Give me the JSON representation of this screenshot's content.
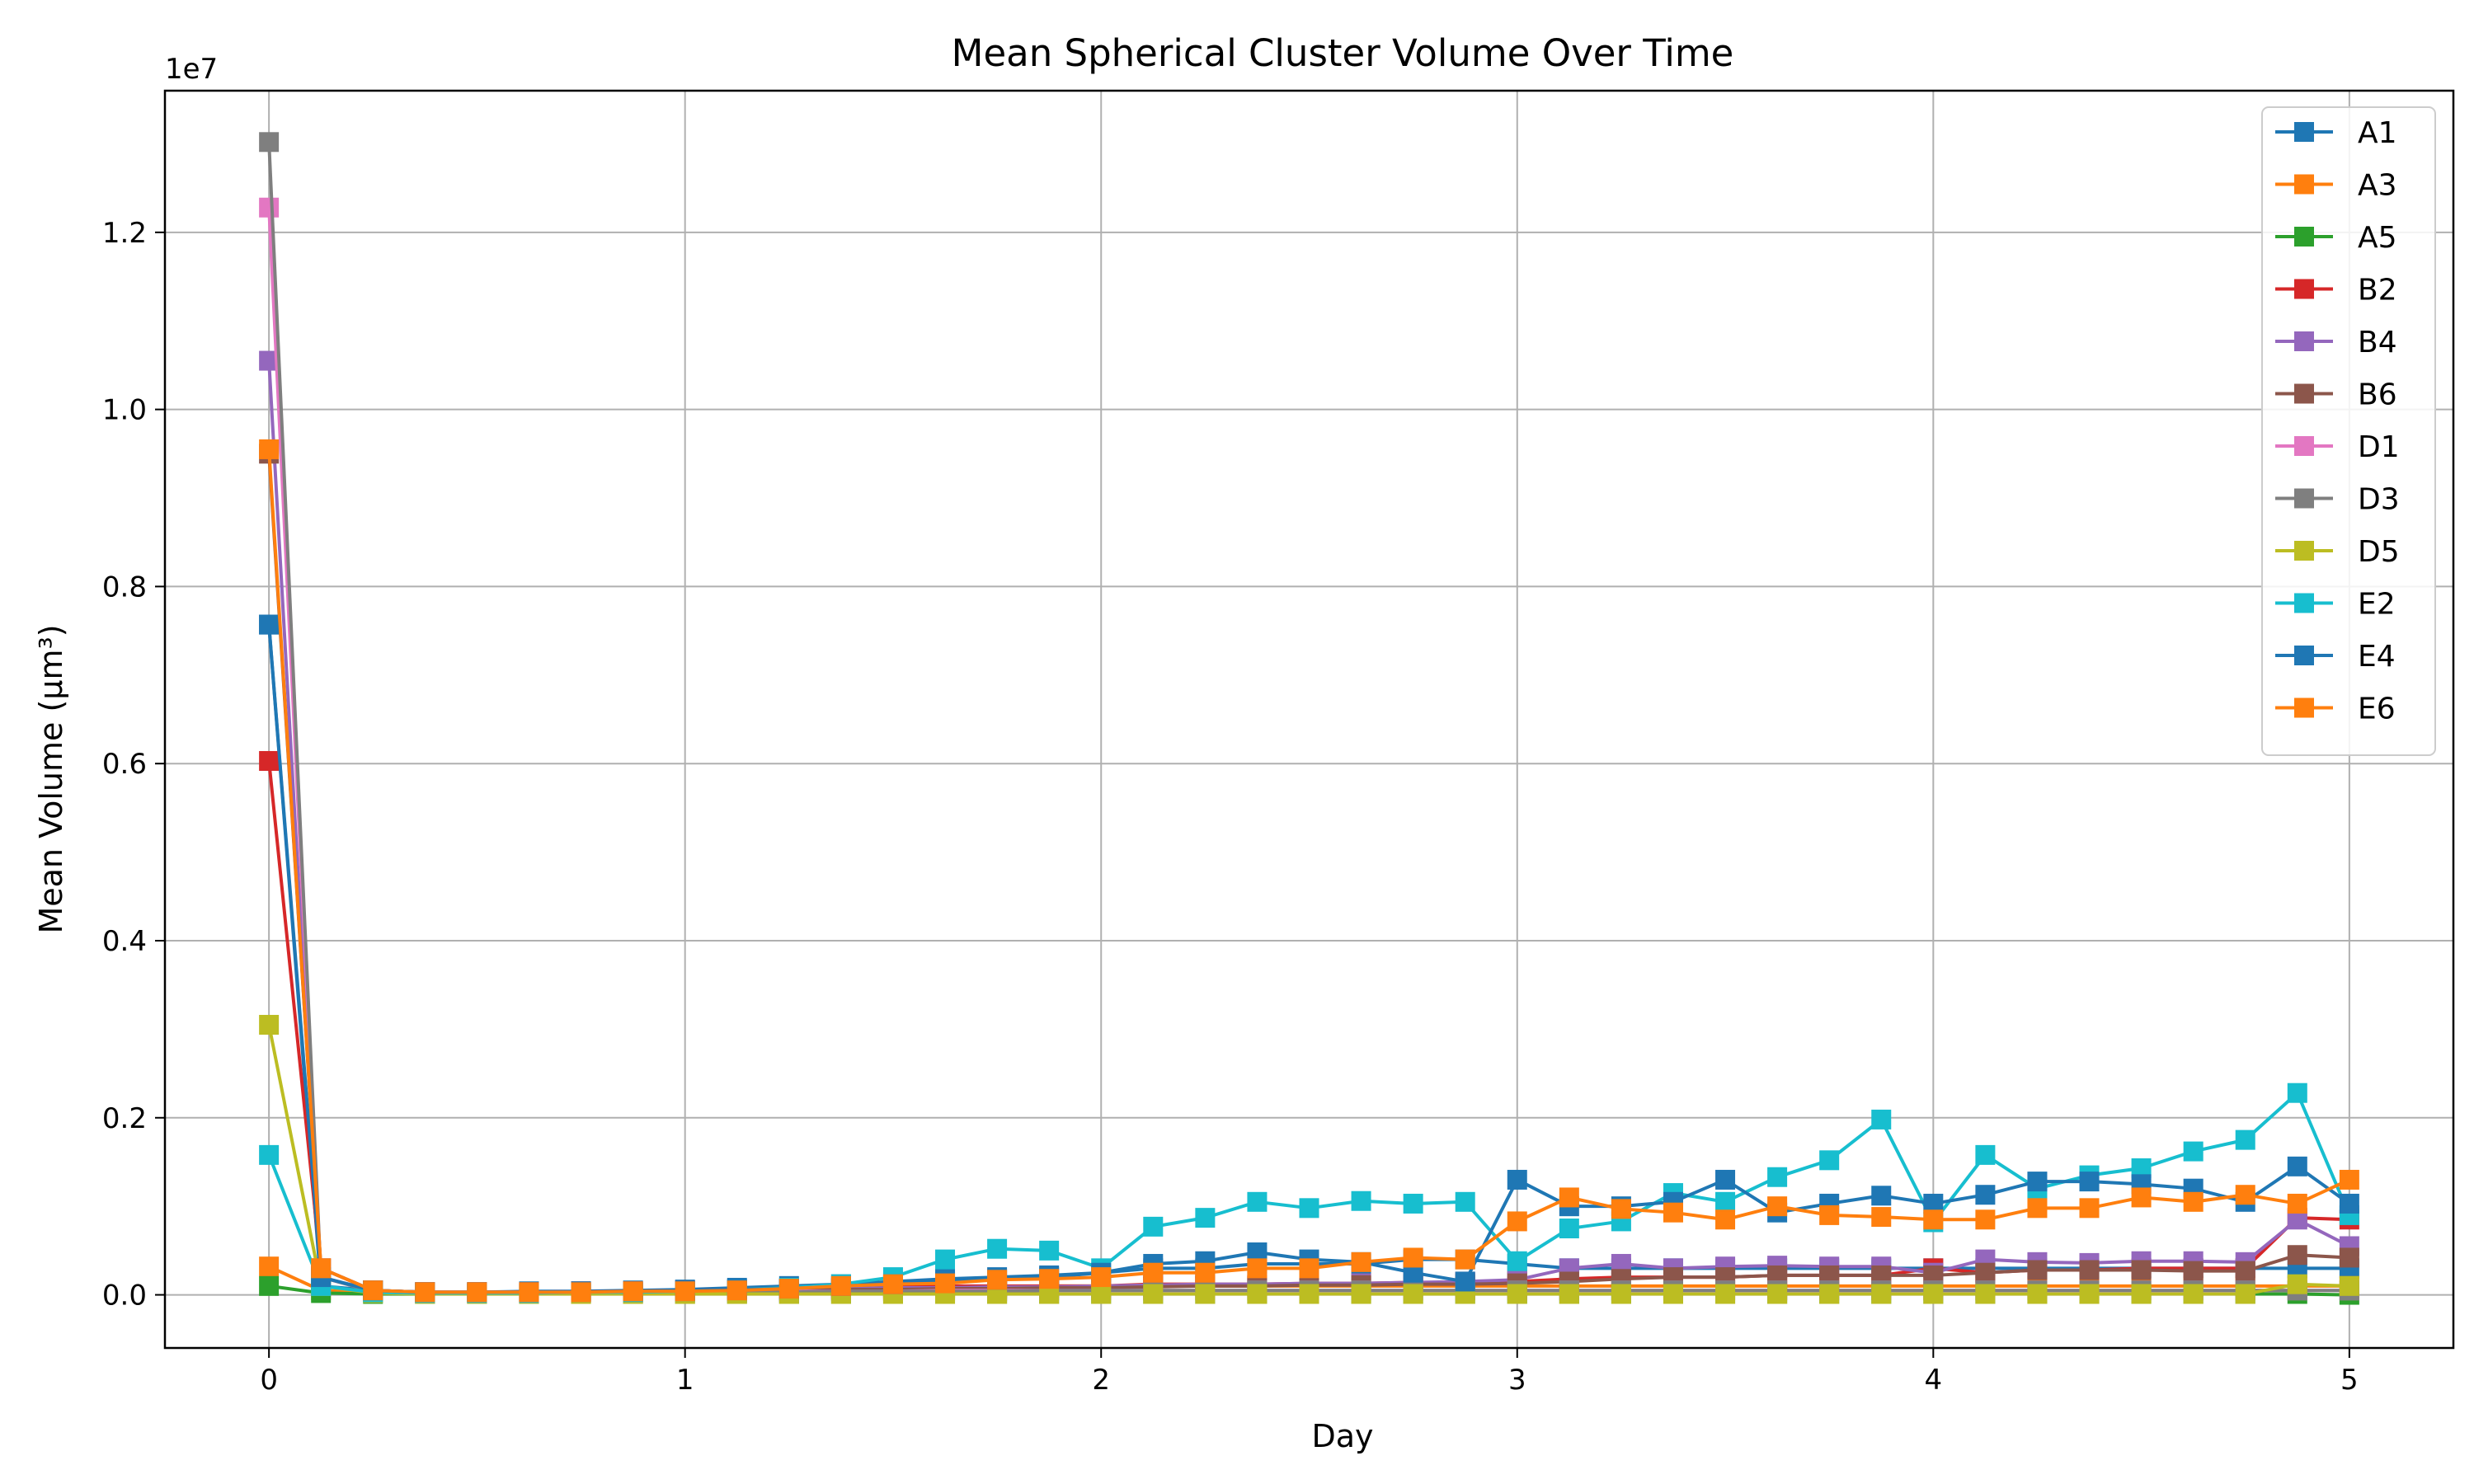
{
  "chart_data": {
    "type": "line",
    "title": "Mean Spherical Cluster Volume Over Time",
    "xlabel": "Day",
    "ylabel": "Mean Volume (µm³)",
    "y_offset_text": "1e7",
    "xlim": [
      -0.25,
      5.25
    ],
    "ylim": [
      -0.6,
      13.6
    ],
    "y_scale": 10000000,
    "xticks": [
      0,
      1,
      2,
      3,
      4,
      5
    ],
    "xtick_labels": [
      "0",
      "1",
      "2",
      "3",
      "4",
      "5"
    ],
    "yticks": [
      0.0,
      0.2,
      0.4,
      0.6,
      0.8,
      1.0,
      1.2
    ],
    "ytick_labels": [
      "0.0",
      "0.2",
      "0.4",
      "0.6",
      "0.8",
      "1.0",
      "1.2"
    ],
    "grid": true,
    "legend_position": "top-right",
    "marker": "square",
    "x": [
      0,
      0.125,
      0.25,
      0.375,
      0.5,
      0.625,
      0.75,
      0.875,
      1.0,
      1.125,
      1.25,
      1.375,
      1.5,
      1.625,
      1.75,
      1.875,
      2.0,
      2.125,
      2.25,
      2.375,
      2.5,
      2.625,
      2.75,
      2.875,
      3.0,
      3.125,
      3.25,
      3.375,
      3.5,
      3.625,
      3.75,
      3.875,
      4.0,
      4.125,
      4.25,
      4.375,
      4.5,
      4.625,
      4.75,
      4.875,
      5.0
    ],
    "series": [
      {
        "name": "A1",
        "color": "#1f77b4",
        "values": [
          0.757,
          0.01,
          0.005,
          0.003,
          0.003,
          0.004,
          0.004,
          0.005,
          0.006,
          0.008,
          0.01,
          0.012,
          0.015,
          0.018,
          0.02,
          0.022,
          0.025,
          0.03,
          0.03,
          0.035,
          0.035,
          0.035,
          0.04,
          0.04,
          0.035,
          0.03,
          0.03,
          0.03,
          0.03,
          0.03,
          0.03,
          0.03,
          0.03,
          0.03,
          0.03,
          0.03,
          0.03,
          0.03,
          0.03,
          0.03,
          0.03
        ]
      },
      {
        "name": "A3",
        "color": "#ff7f0e",
        "values": [
          0.032,
          0.005,
          0.003,
          0.002,
          0.002,
          0.002,
          0.003,
          0.003,
          0.004,
          0.005,
          0.005,
          0.006,
          0.007,
          0.008,
          0.009,
          0.01,
          0.01,
          0.01,
          0.01,
          0.01,
          0.01,
          0.01,
          0.01,
          0.01,
          0.01,
          0.01,
          0.01,
          0.01,
          0.01,
          0.01,
          0.01,
          0.01,
          0.01,
          0.01,
          0.01,
          0.01,
          0.01,
          0.01,
          0.01,
          0.01,
          0.01
        ]
      },
      {
        "name": "A5",
        "color": "#2ca02c",
        "values": [
          0.01,
          0.002,
          0.001,
          0.001,
          0.001,
          0.001,
          0.001,
          0.001,
          0.001,
          0.001,
          0.001,
          0.001,
          0.001,
          0.001,
          0.001,
          0.001,
          0.001,
          0.001,
          0.001,
          0.001,
          0.001,
          0.001,
          0.001,
          0.001,
          0.001,
          0.001,
          0.001,
          0.001,
          0.001,
          0.001,
          0.001,
          0.001,
          0.001,
          0.001,
          0.001,
          0.001,
          0.001,
          0.001,
          0.001,
          0.001,
          0.0
        ]
      },
      {
        "name": "B2",
        "color": "#d62728",
        "values": [
          0.603,
          0.03,
          0.005,
          0.003,
          0.003,
          0.003,
          0.004,
          0.004,
          0.005,
          0.006,
          0.007,
          0.008,
          0.009,
          0.01,
          0.01,
          0.01,
          0.01,
          0.012,
          0.012,
          0.012,
          0.013,
          0.013,
          0.014,
          0.014,
          0.015,
          0.018,
          0.02,
          0.02,
          0.02,
          0.022,
          0.022,
          0.022,
          0.03,
          0.025,
          0.028,
          0.028,
          0.03,
          0.03,
          0.03,
          0.087,
          0.085
        ]
      },
      {
        "name": "B4",
        "color": "#9467bd",
        "values": [
          1.055,
          0.02,
          0.005,
          0.003,
          0.003,
          0.003,
          0.003,
          0.004,
          0.004,
          0.005,
          0.006,
          0.007,
          0.008,
          0.008,
          0.009,
          0.009,
          0.01,
          0.011,
          0.012,
          0.012,
          0.013,
          0.013,
          0.014,
          0.015,
          0.017,
          0.03,
          0.035,
          0.03,
          0.032,
          0.033,
          0.032,
          0.032,
          0.025,
          0.04,
          0.037,
          0.036,
          0.038,
          0.038,
          0.037,
          0.085,
          0.055
        ]
      },
      {
        "name": "B6",
        "color": "#8c564b",
        "values": [
          0.95,
          0.03,
          0.005,
          0.003,
          0.003,
          0.003,
          0.003,
          0.003,
          0.004,
          0.004,
          0.005,
          0.006,
          0.006,
          0.007,
          0.007,
          0.008,
          0.008,
          0.009,
          0.01,
          0.01,
          0.011,
          0.011,
          0.012,
          0.012,
          0.013,
          0.015,
          0.018,
          0.02,
          0.02,
          0.022,
          0.022,
          0.022,
          0.022,
          0.025,
          0.028,
          0.028,
          0.028,
          0.027,
          0.027,
          0.045,
          0.042
        ]
      },
      {
        "name": "D1",
        "color": "#e377c2",
        "values": [
          1.228,
          0.02,
          0.004,
          0.002,
          0.002,
          0.002,
          0.002,
          0.002,
          0.003,
          0.003,
          0.004,
          0.004,
          0.004,
          0.005,
          0.005,
          0.005,
          0.005,
          0.005,
          0.005,
          0.005,
          0.005,
          0.005,
          0.005,
          0.005,
          0.005,
          0.005,
          0.005,
          0.005,
          0.005,
          0.005,
          0.005,
          0.005,
          0.005,
          0.005,
          0.005,
          0.005,
          0.005,
          0.005,
          0.005,
          0.005,
          0.005
        ]
      },
      {
        "name": "D3",
        "color": "#7f7f7f",
        "values": [
          1.302,
          0.02,
          0.004,
          0.002,
          0.002,
          0.002,
          0.002,
          0.002,
          0.003,
          0.003,
          0.003,
          0.004,
          0.004,
          0.004,
          0.004,
          0.005,
          0.005,
          0.005,
          0.005,
          0.005,
          0.005,
          0.005,
          0.005,
          0.005,
          0.005,
          0.005,
          0.005,
          0.005,
          0.005,
          0.005,
          0.005,
          0.005,
          0.005,
          0.005,
          0.005,
          0.005,
          0.005,
          0.005,
          0.005,
          0.005,
          0.005
        ]
      },
      {
        "name": "D5",
        "color": "#bcbd22",
        "values": [
          0.305,
          0.01,
          0.002,
          0.001,
          0.001,
          0.001,
          0.001,
          0.001,
          0.001,
          0.001,
          0.001,
          0.001,
          0.001,
          0.001,
          0.001,
          0.001,
          0.001,
          0.001,
          0.001,
          0.001,
          0.001,
          0.001,
          0.001,
          0.001,
          0.001,
          0.001,
          0.001,
          0.001,
          0.001,
          0.001,
          0.001,
          0.001,
          0.001,
          0.001,
          0.001,
          0.001,
          0.001,
          0.001,
          0.001,
          0.012,
          0.01
        ]
      },
      {
        "name": "E2",
        "color": "#17becf",
        "values": [
          0.158,
          0.01,
          0.003,
          0.002,
          0.002,
          0.002,
          0.003,
          0.003,
          0.004,
          0.006,
          0.008,
          0.012,
          0.02,
          0.04,
          0.052,
          0.05,
          0.03,
          0.077,
          0.087,
          0.105,
          0.098,
          0.106,
          0.103,
          0.105,
          0.038,
          0.075,
          0.083,
          0.115,
          0.105,
          0.133,
          0.152,
          0.198,
          0.082,
          0.158,
          0.12,
          0.135,
          0.143,
          0.162,
          0.175,
          0.228,
          0.09
        ]
      },
      {
        "name": "E4",
        "color": "#1f77b4",
        "values": [
          0.757,
          0.02,
          0.005,
          0.003,
          0.003,
          0.003,
          0.004,
          0.004,
          0.005,
          0.006,
          0.007,
          0.01,
          0.012,
          0.015,
          0.017,
          0.02,
          0.025,
          0.035,
          0.038,
          0.048,
          0.04,
          0.037,
          0.025,
          0.015,
          0.13,
          0.1,
          0.1,
          0.105,
          0.13,
          0.093,
          0.103,
          0.112,
          0.103,
          0.113,
          0.128,
          0.128,
          0.125,
          0.12,
          0.105,
          0.145,
          0.103
        ]
      },
      {
        "name": "E6",
        "color": "#ff7f0e",
        "values": [
          0.955,
          0.03,
          0.005,
          0.003,
          0.003,
          0.003,
          0.003,
          0.004,
          0.004,
          0.005,
          0.007,
          0.01,
          0.012,
          0.013,
          0.017,
          0.018,
          0.02,
          0.025,
          0.025,
          0.03,
          0.03,
          0.037,
          0.042,
          0.04,
          0.083,
          0.11,
          0.097,
          0.093,
          0.085,
          0.1,
          0.09,
          0.088,
          0.085,
          0.085,
          0.098,
          0.098,
          0.11,
          0.105,
          0.113,
          0.103,
          0.13
        ]
      }
    ]
  }
}
